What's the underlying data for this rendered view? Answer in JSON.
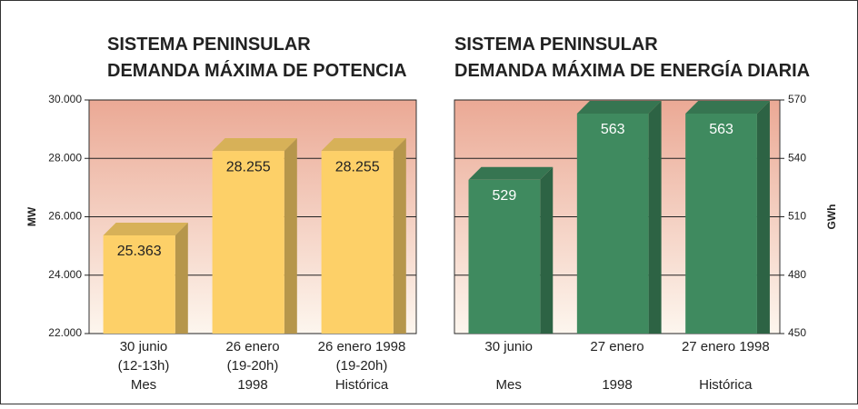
{
  "chart_data": [
    {
      "type": "bar3d",
      "title": [
        "SISTEMA PENINSULAR",
        "DEMANDA MÁXIMA DE POTENCIA"
      ],
      "y_label": "MW",
      "categories": [
        [
          "30 junio",
          "(12-13h)",
          "Mes"
        ],
        [
          "26 enero",
          "(19-20h)",
          "1998"
        ],
        [
          "26 enero 1998",
          "(19-20h)",
          "Histórica"
        ]
      ],
      "values": [
        25363,
        28255,
        28255
      ],
      "value_labels": [
        "25.363",
        "28.255",
        "28.255"
      ],
      "color": "#fdd068",
      "ylim": [
        22000,
        30000
      ],
      "yticks": [
        {
          "value": 22000,
          "label": "22.000"
        },
        {
          "value": 24000,
          "label": "24.000"
        },
        {
          "value": 26000,
          "label": "26.000"
        },
        {
          "value": 28000,
          "label": "28.000"
        },
        {
          "value": 30000,
          "label": "30.000"
        }
      ],
      "y_axis_position": "left",
      "grid": true
    },
    {
      "type": "bar3d",
      "title": [
        "SISTEMA PENINSULAR",
        "DEMANDA MÁXIMA DE ENERGÍA DIARIA"
      ],
      "y_label": "GWh",
      "categories": [
        [
          "30 junio",
          "Mes"
        ],
        [
          "27 enero",
          "1998"
        ],
        [
          "27 enero 1998",
          "Histórica"
        ]
      ],
      "values": [
        529,
        563,
        563
      ],
      "color": "#3f8a5f",
      "ylim": [
        450,
        570
      ],
      "yticks": [
        450,
        480,
        510,
        540,
        570
      ],
      "y_axis_position": "right",
      "grid": true
    }
  ]
}
